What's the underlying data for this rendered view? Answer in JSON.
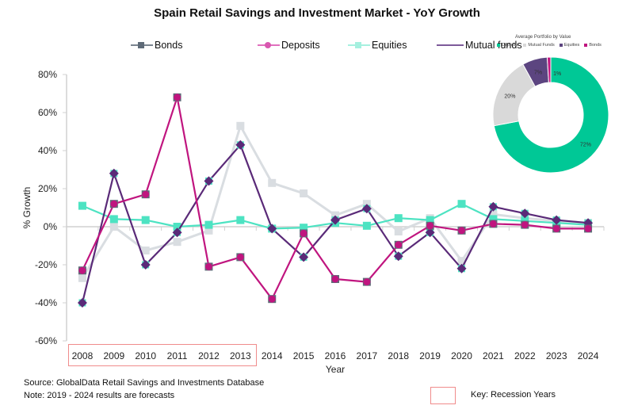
{
  "chart_data": [
    {
      "type": "line",
      "title": "Spain Retail Savings and Investment Market - YoY Growth",
      "xlabel": "Year",
      "ylabel": "% Growth",
      "ylim": [
        -60,
        80
      ],
      "yticks": [
        -60,
        -40,
        -20,
        0,
        20,
        40,
        60,
        80
      ],
      "ytick_labels": [
        "-60%",
        "-40%",
        "-20%",
        "0%",
        "20%",
        "40%",
        "60%",
        "80%"
      ],
      "grid": false,
      "legend_position": "top",
      "categories": [
        "2008",
        "2009",
        "2010",
        "2011",
        "2012",
        "2013",
        "2014",
        "2015",
        "2016",
        "2017",
        "2018",
        "2019",
        "2020",
        "2021",
        "2022",
        "2023",
        "2024"
      ],
      "series": [
        {
          "name": "Bonds",
          "color": "#d9dde1",
          "marker": "square",
          "values": [
            -27,
            0,
            -12.5,
            -8,
            -2,
            53,
            23,
            17.5,
            6,
            12,
            -2.5,
            4.5,
            -18,
            6.5,
            4.5,
            3,
            2
          ]
        },
        {
          "name": "Deposits",
          "color": "#c0157f",
          "marker": "circle",
          "values": [
            -23,
            12,
            17,
            68,
            -21,
            -16,
            -38,
            -3.5,
            -27.5,
            -29,
            -9.5,
            0.5,
            -2,
            1.5,
            1,
            -1,
            -1
          ]
        },
        {
          "name": "Equities",
          "color": "#4de3c2",
          "marker": "square",
          "values": [
            11,
            4,
            3.5,
            0,
            1,
            3.5,
            -1,
            -0.5,
            2,
            0.5,
            4.5,
            3.5,
            12,
            4,
            3,
            2,
            1
          ]
        },
        {
          "name": "Mutual funds",
          "color": "#5a2a78",
          "marker": "diamond",
          "values": [
            -40,
            28,
            -20,
            -3,
            24,
            43,
            -1,
            -16,
            3.5,
            9.5,
            -15.5,
            -3,
            -22,
            10.5,
            7,
            3.5,
            2
          ]
        }
      ],
      "legend": [
        {
          "label": "Bonds",
          "line_color": "#7b8590",
          "marker_color": "#5f6b78"
        },
        {
          "label": "Deposits",
          "line_color": "#e070bd",
          "marker_color": "#d957b0"
        },
        {
          "label": "Equities",
          "line_color": "#a5f0df",
          "marker_color": "#a5f0df"
        },
        {
          "label": "Mutual funds",
          "line_color": "#7d5a9a",
          "marker_color": "#7d5a9a"
        }
      ],
      "recession_years": [
        "2008",
        "2009",
        "2010",
        "2011",
        "2012",
        "2013"
      ]
    },
    {
      "type": "pie",
      "variant": "donut",
      "title": "Average Portfolio by Value",
      "categories": [
        "Deposits",
        "Mutual Funds",
        "Equities",
        "Bonds"
      ],
      "values": [
        72,
        20,
        7,
        1
      ],
      "labels": [
        "72%",
        "20%",
        "7%",
        "1%"
      ],
      "colors": [
        "#00c896",
        "#d9d9d9",
        "#5c4580",
        "#c0157f"
      ],
      "legend_position": "top"
    }
  ],
  "footer": {
    "source": "Source: GlobalData Retail Savings and Investments Database",
    "note": "Note: 2019 - 2024 results are forecasts",
    "key_label": "Key: Recession Years"
  }
}
